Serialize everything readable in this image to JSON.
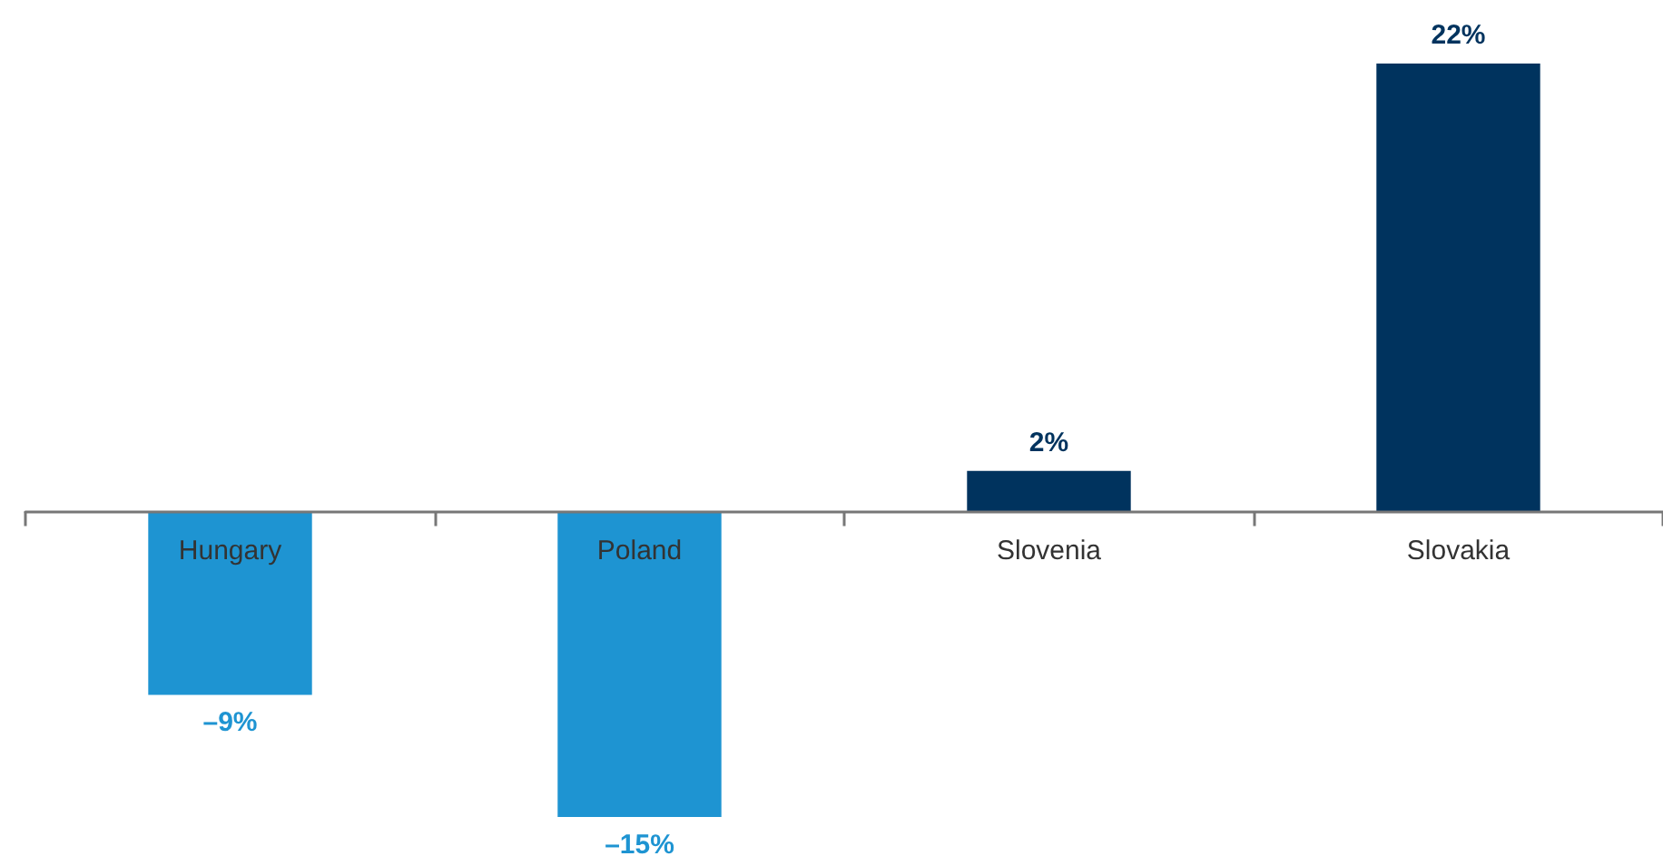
{
  "chart_data": {
    "type": "bar",
    "categories": [
      "Hungary",
      "Poland",
      "Slovenia",
      "Slovakia"
    ],
    "values": [
      -9,
      -15,
      2,
      22
    ],
    "colors": [
      "#1e94d2",
      "#1e94d2",
      "#00335e",
      "#00335e"
    ],
    "value_labels": [
      "–9%",
      "–15%",
      "2%",
      "22%"
    ],
    "tick_labels": "x"
  }
}
